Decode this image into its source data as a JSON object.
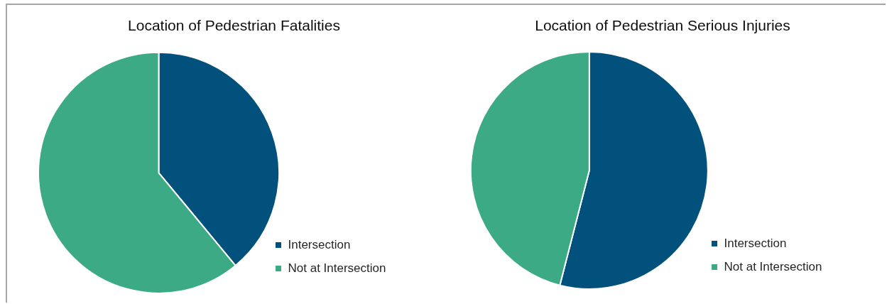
{
  "chart_data": [
    {
      "type": "pie",
      "title": "Location of Pedestrian Fatalities",
      "categories": [
        "Intersection",
        "Not at Intersection"
      ],
      "values": [
        39,
        61
      ],
      "colors": [
        "#02507c",
        "#3caa85"
      ],
      "legend": "bottom right"
    },
    {
      "type": "pie",
      "title": "Location of Pedestrian Serious Injuries",
      "categories": [
        "Intersection",
        "Not at Intersection"
      ],
      "values": [
        54,
        46
      ],
      "colors": [
        "#02507c",
        "#3caa85"
      ],
      "legend": "bottom right"
    }
  ]
}
